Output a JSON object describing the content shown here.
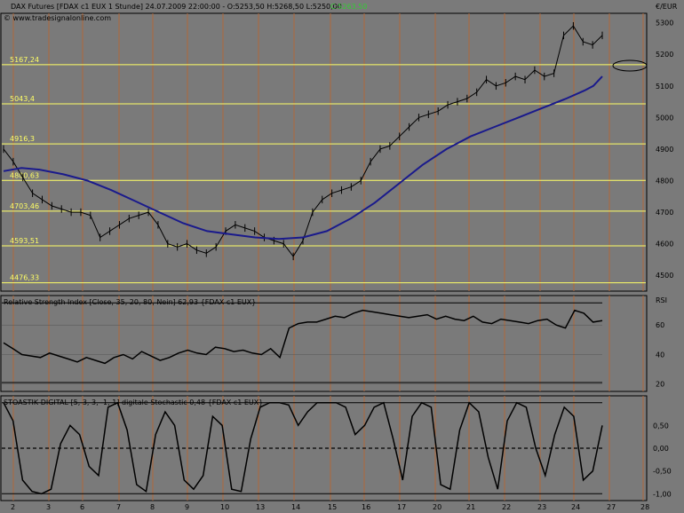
{
  "header": {
    "title": "DAX Futures [FDAX c1 EUX  1 Stunde] 24.07.2009 22:00:00 - O:5253,50 H:5268,50 L:5250,00",
    "close": "C:5263,50",
    "copyright": "© www.tradesignalonline.com",
    "currency": "€/EUR"
  },
  "colors": {
    "background": "#7a7a7a",
    "grid": "#b0683a",
    "level_line": "#ffff66",
    "ma_line": "#1a1a8c",
    "price": "#000000",
    "close_text": "#33cc33"
  },
  "chart_data": [
    {
      "type": "line",
      "name": "price",
      "title": "DAX Futures [FDAX c1 EUX  1 Stunde]",
      "ylim": [
        4450,
        5330
      ],
      "yticks": [
        "5300",
        "5200",
        "5100",
        "5000",
        "4900",
        "4800",
        "4700",
        "4600",
        "4500"
      ],
      "levels": [
        {
          "value": 5167.24,
          "label": "5167,24"
        },
        {
          "value": 5043.4,
          "label": "5043,4"
        },
        {
          "value": 4916.3,
          "label": "4916,3"
        },
        {
          "value": 4800.63,
          "label": "4800,63"
        },
        {
          "value": 4703.46,
          "label": "4703,46"
        },
        {
          "value": 4593.51,
          "label": "4593,51"
        },
        {
          "value": 4476.33,
          "label": "4476,33"
        }
      ],
      "x": [
        "2",
        "3",
        "6",
        "7",
        "8",
        "9",
        "10",
        "13",
        "14",
        "15",
        "16",
        "17",
        "20",
        "21",
        "22",
        "23",
        "24",
        "27",
        "28"
      ],
      "close_series": [
        4900,
        4860,
        4810,
        4760,
        4740,
        4720,
        4710,
        4700,
        4700,
        4690,
        4620,
        4640,
        4660,
        4680,
        4690,
        4700,
        4660,
        4600,
        4590,
        4600,
        4580,
        4570,
        4590,
        4640,
        4660,
        4650,
        4640,
        4620,
        4610,
        4600,
        4560,
        4610,
        4700,
        4740,
        4760,
        4770,
        4780,
        4800,
        4860,
        4900,
        4910,
        4940,
        4970,
        5000,
        5010,
        5020,
        5040,
        5050,
        5060,
        5080,
        5120,
        5100,
        5110,
        5130,
        5120,
        5150,
        5130,
        5140,
        5260,
        5290,
        5240,
        5230,
        5260
      ],
      "moving_average": [
        4830,
        4840,
        4835,
        4820,
        4800,
        4770,
        4735,
        4700,
        4665,
        4640,
        4630,
        4620,
        4615,
        4620,
        4640,
        4680,
        4730,
        4790,
        4850,
        4900,
        4940,
        4970,
        5000,
        5030,
        5060,
        5085,
        5100,
        5130
      ],
      "ma_x_fraction": [
        0,
        0.03,
        0.06,
        0.1,
        0.14,
        0.18,
        0.22,
        0.26,
        0.3,
        0.34,
        0.38,
        0.42,
        0.46,
        0.5,
        0.54,
        0.58,
        0.62,
        0.66,
        0.7,
        0.74,
        0.78,
        0.82,
        0.86,
        0.9,
        0.94,
        0.97,
        0.985,
        1.0
      ]
    },
    {
      "type": "line",
      "name": "rsi",
      "title": "Relative Strength Index [Close, 35, 20, 80, Nein] 62,93 {FDAX c1 EUX}",
      "ylim": [
        15,
        80
      ],
      "yticks": [
        "RSI",
        "60",
        "40",
        "20"
      ],
      "values": [
        48,
        44,
        40,
        39,
        38,
        41,
        39,
        37,
        35,
        38,
        36,
        34,
        38,
        40,
        37,
        42,
        39,
        36,
        38,
        41,
        43,
        41,
        40,
        45,
        44,
        42,
        43,
        41,
        40,
        44,
        38,
        58,
        61,
        62,
        62,
        64,
        66,
        65,
        68,
        70,
        69,
        68,
        67,
        66,
        65,
        66,
        67,
        64,
        66,
        64,
        63,
        66,
        62,
        61,
        64,
        63,
        62,
        61,
        63,
        64,
        60,
        58,
        70,
        68,
        62,
        63
      ]
    },
    {
      "type": "line",
      "name": "stochastic",
      "title": "STOASTIK DIGITAL [5, 3, 3, -1, 1] digitale Stochastic 0,48 {FDAX c1 EUX}",
      "ylim": [
        -1.15,
        1.15
      ],
      "yticks": [
        "0,50",
        "0,00",
        "-0,50",
        "-1,00"
      ],
      "values": [
        1.0,
        0.6,
        -0.7,
        -0.95,
        -1.0,
        -0.9,
        0.1,
        0.5,
        0.3,
        -0.4,
        -0.6,
        0.9,
        1.0,
        0.4,
        -0.8,
        -0.95,
        0.3,
        0.8,
        0.5,
        -0.7,
        -0.9,
        -0.6,
        0.7,
        0.5,
        -0.9,
        -0.95,
        0.2,
        0.9,
        1.0,
        1.0,
        0.95,
        0.5,
        0.8,
        1.0,
        1.0,
        1.0,
        0.9,
        0.3,
        0.5,
        0.9,
        1.0,
        0.2,
        -0.7,
        0.7,
        1.0,
        0.9,
        -0.8,
        -0.9,
        0.4,
        1.0,
        0.8,
        -0.2,
        -0.9,
        0.6,
        1.0,
        0.9,
        0.0,
        -0.6,
        0.3,
        0.9,
        0.7,
        -0.7,
        -0.5,
        0.5
      ]
    }
  ],
  "xaxis": [
    "2",
    "3",
    "6",
    "7",
    "8",
    "9",
    "10",
    "13",
    "14",
    "15",
    "16",
    "17",
    "20",
    "21",
    "22",
    "23",
    "24",
    "27",
    "28"
  ]
}
